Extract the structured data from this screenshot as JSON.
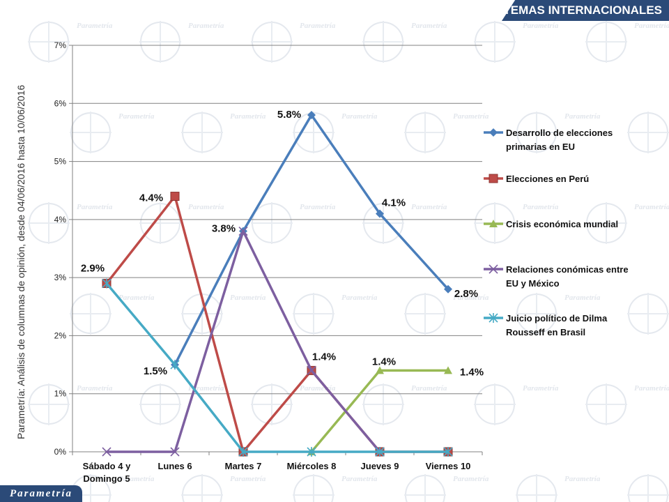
{
  "header": {
    "title": "TEMAS INTERNACIONALES"
  },
  "side_note": "Parametría: Análisis de columnas de opinión, desde 04/06/2016 hasta  10/06/2016",
  "footer": {
    "logo_text": "Parametría"
  },
  "background": {
    "watermark": "Parametría"
  },
  "colors": {
    "banner": "#2b4a78",
    "grid": "#808080",
    "series": [
      "#4a7ebb",
      "#be4b48",
      "#98b954",
      "#7d5fa0",
      "#46aac5"
    ]
  },
  "chart_data": {
    "type": "line",
    "categories": [
      [
        "Sábado 4 y",
        "Domingo 5"
      ],
      [
        "Lunes 6"
      ],
      [
        "Martes 7"
      ],
      [
        "Miércoles 8"
      ],
      [
        "Jueves 9"
      ],
      [
        "Viernes 10"
      ]
    ],
    "y_ticks": [
      "0%",
      "1%",
      "2%",
      "3%",
      "4%",
      "5%",
      "6%",
      "7%"
    ],
    "ylim": [
      0,
      7
    ],
    "grid": true,
    "legend_position": "right",
    "series": [
      {
        "name": [
          "Desarrollo de elecciones",
          "primarias en EU"
        ],
        "marker": "diamond",
        "values": [
          null,
          1.5,
          3.8,
          5.8,
          4.1,
          2.8
        ]
      },
      {
        "name": [
          "Elecciones en Perú"
        ],
        "marker": "square",
        "values": [
          2.9,
          4.4,
          0,
          1.4,
          0,
          0
        ]
      },
      {
        "name": [
          "Crisis económica mundial"
        ],
        "marker": "triangle",
        "values": [
          null,
          null,
          null,
          0,
          1.4,
          1.4
        ]
      },
      {
        "name": [
          "Relaciones conómicas entre",
          "EU y México"
        ],
        "marker": "x",
        "values": [
          0,
          0,
          3.8,
          1.4,
          0,
          null
        ]
      },
      {
        "name": [
          "Juicio político de Dilma",
          "Rousseff en Brasil"
        ],
        "marker": "star",
        "values": [
          2.9,
          1.5,
          0,
          0,
          0,
          0
        ]
      }
    ],
    "data_labels": [
      {
        "series": 1,
        "index": 0,
        "text": "2.9%"
      },
      {
        "series": 1,
        "index": 1,
        "text": "4.4%"
      },
      {
        "series": 0,
        "index": 1,
        "text": "1.5%"
      },
      {
        "series": 0,
        "index": 2,
        "text": "3.8%"
      },
      {
        "series": 0,
        "index": 3,
        "text": "5.8%"
      },
      {
        "series": 0,
        "index": 4,
        "text": "4.1%"
      },
      {
        "series": 0,
        "index": 5,
        "text": "2.8%"
      },
      {
        "series": 1,
        "index": 3,
        "text": "1.4%"
      },
      {
        "series": 2,
        "index": 4,
        "text": "1.4%"
      },
      {
        "series": 2,
        "index": 5,
        "text": "1.4%"
      }
    ]
  }
}
